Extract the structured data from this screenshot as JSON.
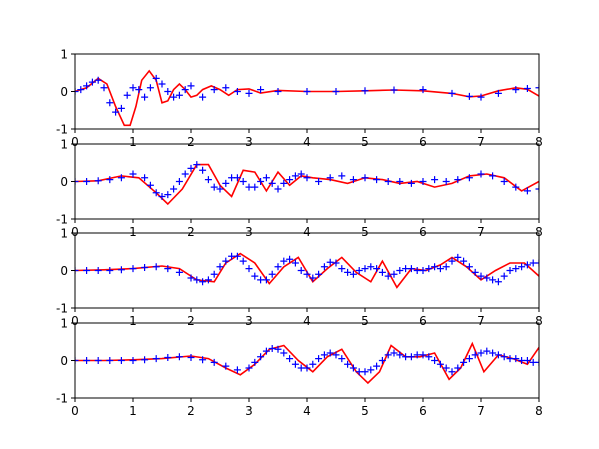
{
  "chart_data": [
    {
      "type": "line",
      "title": "",
      "xlabel": "",
      "ylabel": "",
      "xlim": [
        0,
        8
      ],
      "ylim": [
        -1,
        1
      ],
      "xticks": [
        "0",
        "1",
        "2",
        "3",
        "4",
        "5",
        "6",
        "7",
        "8"
      ],
      "yticks": [
        "-1",
        "0",
        "1"
      ],
      "grid": false,
      "series": [
        {
          "marker": "line",
          "color": "#ff0000",
          "x": [
            0,
            0.2,
            0.4,
            0.55,
            0.7,
            0.85,
            0.95,
            1.05,
            1.15,
            1.28,
            1.4,
            1.5,
            1.6,
            1.7,
            1.8,
            1.9,
            2.0,
            2.1,
            2.2,
            2.35,
            2.5,
            2.65,
            2.8,
            3.0,
            3.2,
            3.5,
            4.0,
            4.5,
            5.0,
            5.5,
            6.0,
            6.5,
            6.8,
            7.0,
            7.3,
            7.6,
            7.8,
            8.0
          ],
          "y": [
            0,
            0.1,
            0.35,
            0.2,
            -0.4,
            -0.9,
            -0.9,
            -0.4,
            0.3,
            0.55,
            0.3,
            -0.3,
            -0.25,
            0.05,
            0.2,
            0.05,
            -0.15,
            -0.1,
            0.05,
            0.15,
            0.05,
            -0.1,
            0.05,
            0.07,
            -0.04,
            0.03,
            0,
            0,
            0.02,
            0.04,
            0.02,
            -0.05,
            -0.14,
            -0.12,
            0.02,
            0.1,
            0.06,
            -0.12
          ]
        },
        {
          "marker": "+",
          "color": "#0000ff",
          "x": [
            0,
            0.1,
            0.2,
            0.3,
            0.4,
            0.5,
            0.6,
            0.7,
            0.8,
            0.9,
            1.0,
            1.1,
            1.2,
            1.3,
            1.4,
            1.5,
            1.6,
            1.7,
            1.8,
            1.9,
            2.0,
            2.2,
            2.4,
            2.6,
            2.8,
            3.0,
            3.2,
            3.5,
            4.0,
            4.5,
            5.0,
            5.5,
            6.0,
            6.5,
            6.8,
            7.0,
            7.3,
            7.6,
            7.8,
            8.0
          ],
          "y": [
            0,
            0.05,
            0.15,
            0.25,
            0.3,
            0.1,
            -0.3,
            -0.55,
            -0.45,
            -0.1,
            0.1,
            0.05,
            -0.15,
            0.1,
            0.35,
            0.2,
            0.0,
            -0.15,
            -0.1,
            0.05,
            0.15,
            -0.15,
            0.05,
            0.1,
            0.0,
            -0.05,
            0.05,
            0.0,
            0.0,
            0.0,
            0.02,
            0.04,
            0.05,
            -0.05,
            -0.13,
            -0.15,
            -0.05,
            0.05,
            0.08,
            0.1
          ]
        }
      ]
    },
    {
      "type": "line",
      "title": "",
      "xlabel": "",
      "ylabel": "",
      "xlim": [
        0,
        8
      ],
      "ylim": [
        -1,
        1
      ],
      "xticks": [
        "0",
        "1",
        "2",
        "3",
        "4",
        "5",
        "6",
        "7",
        "8"
      ],
      "yticks": [
        "-1",
        "0",
        "1"
      ],
      "grid": false,
      "series": [
        {
          "marker": "line",
          "color": "#ff0000",
          "x": [
            0,
            0.4,
            0.8,
            1.1,
            1.4,
            1.6,
            1.85,
            2.1,
            2.3,
            2.5,
            2.7,
            2.9,
            3.1,
            3.3,
            3.5,
            3.7,
            3.9,
            4.1,
            4.4,
            4.7,
            5.0,
            5.3,
            5.6,
            5.9,
            6.2,
            6.5,
            6.8,
            7.1,
            7.4,
            7.7,
            8.0
          ],
          "y": [
            0,
            0.02,
            0.15,
            0.1,
            -0.3,
            -0.6,
            -0.2,
            0.45,
            0.45,
            -0.1,
            -0.4,
            0.3,
            0.25,
            -0.25,
            0.25,
            -0.1,
            0.15,
            0.1,
            0.05,
            -0.05,
            0.1,
            0.05,
            -0.05,
            0,
            -0.15,
            -0.05,
            0.15,
            0.2,
            0.1,
            -0.25,
            0.0
          ]
        },
        {
          "marker": "+",
          "color": "#0000ff",
          "x": [
            0,
            0.2,
            0.4,
            0.6,
            0.8,
            1.0,
            1.2,
            1.3,
            1.4,
            1.5,
            1.6,
            1.7,
            1.8,
            1.9,
            2.0,
            2.1,
            2.2,
            2.3,
            2.4,
            2.5,
            2.6,
            2.7,
            2.8,
            2.9,
            3.0,
            3.1,
            3.2,
            3.3,
            3.4,
            3.5,
            3.6,
            3.7,
            3.8,
            3.9,
            4.0,
            4.2,
            4.4,
            4.6,
            4.8,
            5.0,
            5.2,
            5.4,
            5.6,
            5.8,
            6.0,
            6.2,
            6.4,
            6.6,
            6.8,
            7.0,
            7.2,
            7.4,
            7.6,
            7.8,
            8.0
          ],
          "y": [
            0,
            0.0,
            0.02,
            0.05,
            0.1,
            0.2,
            0.1,
            -0.1,
            -0.3,
            -0.4,
            -0.35,
            -0.2,
            0.0,
            0.2,
            0.35,
            0.45,
            0.3,
            0.05,
            -0.15,
            -0.2,
            -0.05,
            0.1,
            0.1,
            0.0,
            -0.15,
            -0.15,
            0.0,
            0.1,
            -0.05,
            -0.2,
            -0.05,
            0.05,
            0.15,
            0.2,
            0.1,
            0.0,
            0.1,
            0.15,
            0.05,
            0.1,
            0.05,
            0.0,
            0.0,
            -0.05,
            0.0,
            0.05,
            0.0,
            0.05,
            0.1,
            0.2,
            0.15,
            0.0,
            -0.15,
            -0.25,
            -0.2
          ]
        }
      ]
    },
    {
      "type": "line",
      "title": "",
      "xlabel": "",
      "ylabel": "",
      "xlim": [
        0,
        8
      ],
      "ylim": [
        -1,
        1
      ],
      "xticks": [
        "0",
        "1",
        "2",
        "3",
        "4",
        "5",
        "6",
        "7",
        "8"
      ],
      "yticks": [
        "-1",
        "0",
        "1"
      ],
      "grid": false,
      "series": [
        {
          "marker": "line",
          "color": "#ff0000",
          "x": [
            0,
            0.5,
            1.0,
            1.5,
            1.8,
            2.1,
            2.4,
            2.6,
            2.85,
            3.1,
            3.35,
            3.6,
            3.85,
            4.1,
            4.35,
            4.6,
            4.85,
            5.1,
            5.3,
            5.55,
            5.8,
            6.05,
            6.3,
            6.5,
            6.75,
            7.0,
            7.25,
            7.5,
            7.75,
            8.0
          ],
          "y": [
            0,
            0.02,
            0.05,
            0.12,
            0.05,
            -0.25,
            -0.3,
            0.2,
            0.45,
            0.2,
            -0.35,
            0.1,
            0.35,
            -0.3,
            0.05,
            0.35,
            -0.05,
            -0.3,
            0.25,
            -0.45,
            0.05,
            0.0,
            0.15,
            0.35,
            0.1,
            -0.25,
            0.0,
            0.2,
            0.2,
            -0.15
          ]
        },
        {
          "marker": "+",
          "color": "#0000ff",
          "x": [
            0,
            0.2,
            0.4,
            0.6,
            0.8,
            1.0,
            1.2,
            1.4,
            1.6,
            1.8,
            2.0,
            2.1,
            2.2,
            2.3,
            2.4,
            2.5,
            2.6,
            2.7,
            2.8,
            2.9,
            3.0,
            3.1,
            3.2,
            3.3,
            3.4,
            3.5,
            3.6,
            3.7,
            3.8,
            3.9,
            4.0,
            4.1,
            4.2,
            4.3,
            4.4,
            4.5,
            4.6,
            4.7,
            4.8,
            4.9,
            5.0,
            5.1,
            5.2,
            5.3,
            5.4,
            5.5,
            5.6,
            5.7,
            5.8,
            5.9,
            6.0,
            6.1,
            6.2,
            6.3,
            6.4,
            6.5,
            6.6,
            6.7,
            6.8,
            6.9,
            7.0,
            7.1,
            7.2,
            7.3,
            7.4,
            7.5,
            7.6,
            7.7,
            7.8,
            7.9,
            8.0
          ],
          "y": [
            0,
            0.0,
            0.0,
            0.0,
            0.02,
            0.05,
            0.08,
            0.1,
            0.05,
            -0.05,
            -0.2,
            -0.25,
            -0.3,
            -0.25,
            -0.1,
            0.1,
            0.25,
            0.38,
            0.38,
            0.25,
            0.05,
            -0.15,
            -0.25,
            -0.25,
            -0.1,
            0.1,
            0.25,
            0.3,
            0.2,
            0.0,
            -0.1,
            -0.2,
            -0.1,
            0.1,
            0.22,
            0.2,
            0.05,
            -0.05,
            -0.1,
            0.0,
            0.05,
            0.1,
            0.05,
            -0.05,
            -0.15,
            -0.1,
            0.0,
            0.05,
            0.05,
            0.0,
            0.0,
            0.05,
            0.1,
            0.05,
            0.1,
            0.25,
            0.35,
            0.25,
            0.1,
            -0.05,
            -0.15,
            -0.2,
            -0.25,
            -0.3,
            -0.15,
            0.0,
            0.05,
            0.1,
            0.15,
            0.2,
            0.2
          ]
        }
      ]
    },
    {
      "type": "line",
      "title": "",
      "xlabel": "",
      "ylabel": "",
      "xlim": [
        0,
        8
      ],
      "ylim": [
        -1,
        1
      ],
      "xticks": [
        "0",
        "1",
        "2",
        "3",
        "4",
        "5",
        "6",
        "7",
        "8"
      ],
      "yticks": [
        "-1",
        "0",
        "1"
      ],
      "grid": false,
      "series": [
        {
          "marker": "line",
          "color": "#ff0000",
          "x": [
            0,
            0.5,
            1.0,
            1.5,
            2.0,
            2.3,
            2.6,
            2.85,
            3.1,
            3.35,
            3.6,
            3.85,
            4.1,
            4.35,
            4.6,
            4.85,
            5.05,
            5.25,
            5.45,
            5.7,
            5.95,
            6.2,
            6.45,
            6.65,
            6.85,
            7.05,
            7.3,
            7.55,
            7.8,
            8.0
          ],
          "y": [
            0,
            0.0,
            0.02,
            0.05,
            0.12,
            0.05,
            -0.2,
            -0.38,
            -0.1,
            0.3,
            0.4,
            0.0,
            -0.3,
            0.1,
            0.3,
            -0.3,
            -0.6,
            -0.3,
            0.4,
            0.1,
            0.1,
            0.2,
            -0.5,
            -0.2,
            0.45,
            -0.3,
            0.15,
            0.05,
            -0.1,
            0.35
          ]
        },
        {
          "marker": "+",
          "color": "#0000ff",
          "x": [
            0,
            0.2,
            0.4,
            0.6,
            0.8,
            1.0,
            1.2,
            1.4,
            1.6,
            1.8,
            2.0,
            2.2,
            2.4,
            2.6,
            2.8,
            3.0,
            3.1,
            3.2,
            3.3,
            3.4,
            3.5,
            3.6,
            3.7,
            3.8,
            3.9,
            4.0,
            4.1,
            4.2,
            4.3,
            4.4,
            4.5,
            4.6,
            4.7,
            4.8,
            4.9,
            5.0,
            5.1,
            5.2,
            5.3,
            5.4,
            5.5,
            5.6,
            5.7,
            5.8,
            5.9,
            6.0,
            6.1,
            6.2,
            6.3,
            6.4,
            6.5,
            6.6,
            6.7,
            6.8,
            6.9,
            7.0,
            7.1,
            7.2,
            7.3,
            7.4,
            7.5,
            7.6,
            7.7,
            7.8,
            7.9,
            8.0
          ],
          "y": [
            0,
            0.0,
            0.0,
            0.0,
            0.0,
            0.0,
            0.02,
            0.05,
            0.08,
            0.1,
            0.08,
            0.02,
            -0.05,
            -0.15,
            -0.25,
            -0.2,
            -0.05,
            0.1,
            0.25,
            0.32,
            0.3,
            0.2,
            0.05,
            -0.1,
            -0.2,
            -0.2,
            -0.1,
            0.05,
            0.15,
            0.2,
            0.15,
            0.05,
            -0.1,
            -0.2,
            -0.3,
            -0.3,
            -0.25,
            -0.15,
            0.0,
            0.15,
            0.2,
            0.15,
            0.1,
            0.1,
            0.15,
            0.15,
            0.1,
            0.0,
            -0.1,
            -0.2,
            -0.3,
            -0.2,
            -0.05,
            0.05,
            0.15,
            0.2,
            0.25,
            0.2,
            0.15,
            0.1,
            0.05,
            0.05,
            0.0,
            0.0,
            -0.05,
            -0.05
          ]
        }
      ]
    }
  ]
}
